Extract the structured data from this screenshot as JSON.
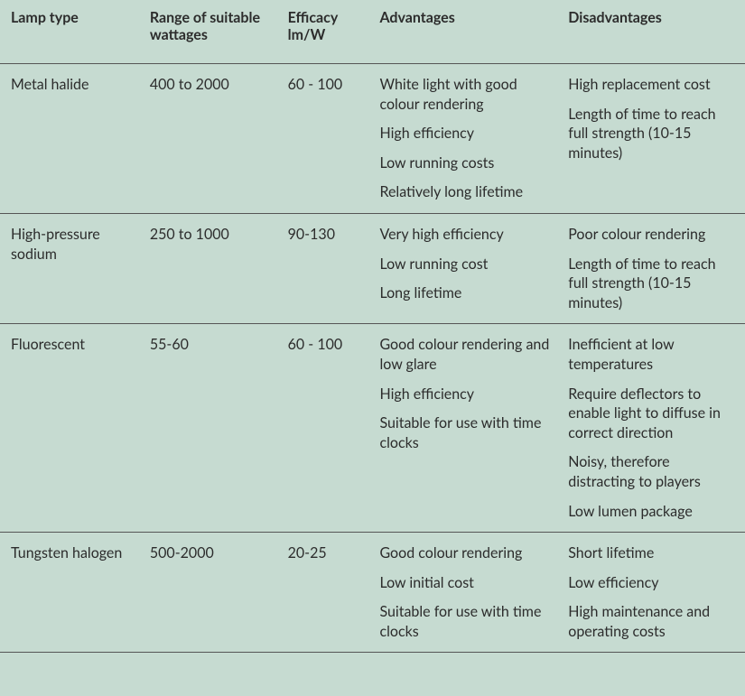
{
  "columns": [
    {
      "key": "lamp_type",
      "label": "Lamp type"
    },
    {
      "key": "wattage",
      "label": "Range of suitable wattages"
    },
    {
      "key": "efficacy",
      "label": "Efficacy lm/W"
    },
    {
      "key": "advantages",
      "label": "Advantages"
    },
    {
      "key": "disadvantages",
      "label": "Disadvantages"
    }
  ],
  "rows": [
    {
      "lamp_type": "Metal halide",
      "wattage": "400 to 2000",
      "efficacy": "60 - 100",
      "advantages": [
        "White light with good colour rendering",
        "High efficiency",
        "Low running costs",
        "Relatively long lifetime"
      ],
      "disadvantages": [
        "High replacement cost",
        "Length of time to reach full strength (10-15 minutes)"
      ]
    },
    {
      "lamp_type": "High-pressure sodium",
      "wattage": "250 to 1000",
      "efficacy": "90-130",
      "advantages": [
        "Very high efficiency",
        "Low running cost",
        "Long lifetime"
      ],
      "disadvantages": [
        "Poor colour rendering",
        "Length of time to reach full strength (10-15 minutes)"
      ]
    },
    {
      "lamp_type": "Fluorescent",
      "wattage": "55-60",
      "efficacy": "60 - 100",
      "advantages": [
        "Good colour rendering and low glare",
        "High efficiency",
        "Suitable for use with time clocks"
      ],
      "disadvantages": [
        "Inefficient at low temperatures",
        "Require deflectors to enable light to diffuse in correct direction",
        "Noisy, therefore distracting to players",
        "Low lumen package"
      ]
    },
    {
      "lamp_type": "Tungsten halogen",
      "wattage": "500-2000",
      "efficacy": "20-25",
      "advantages": [
        "Good colour rendering",
        "Low initial cost",
        "Suitable for use with time clocks"
      ],
      "disadvantages": [
        "Short lifetime",
        "Low efficiency",
        "High maintenance and operating costs"
      ]
    }
  ],
  "background_color": "#c6dbd1",
  "border_color": "#555555",
  "text_color": "#2c2c2c",
  "font_size_body": 16,
  "font_size_header": 16,
  "font_family": "Segoe UI, Lato, Open Sans, Arial, sans-serif"
}
